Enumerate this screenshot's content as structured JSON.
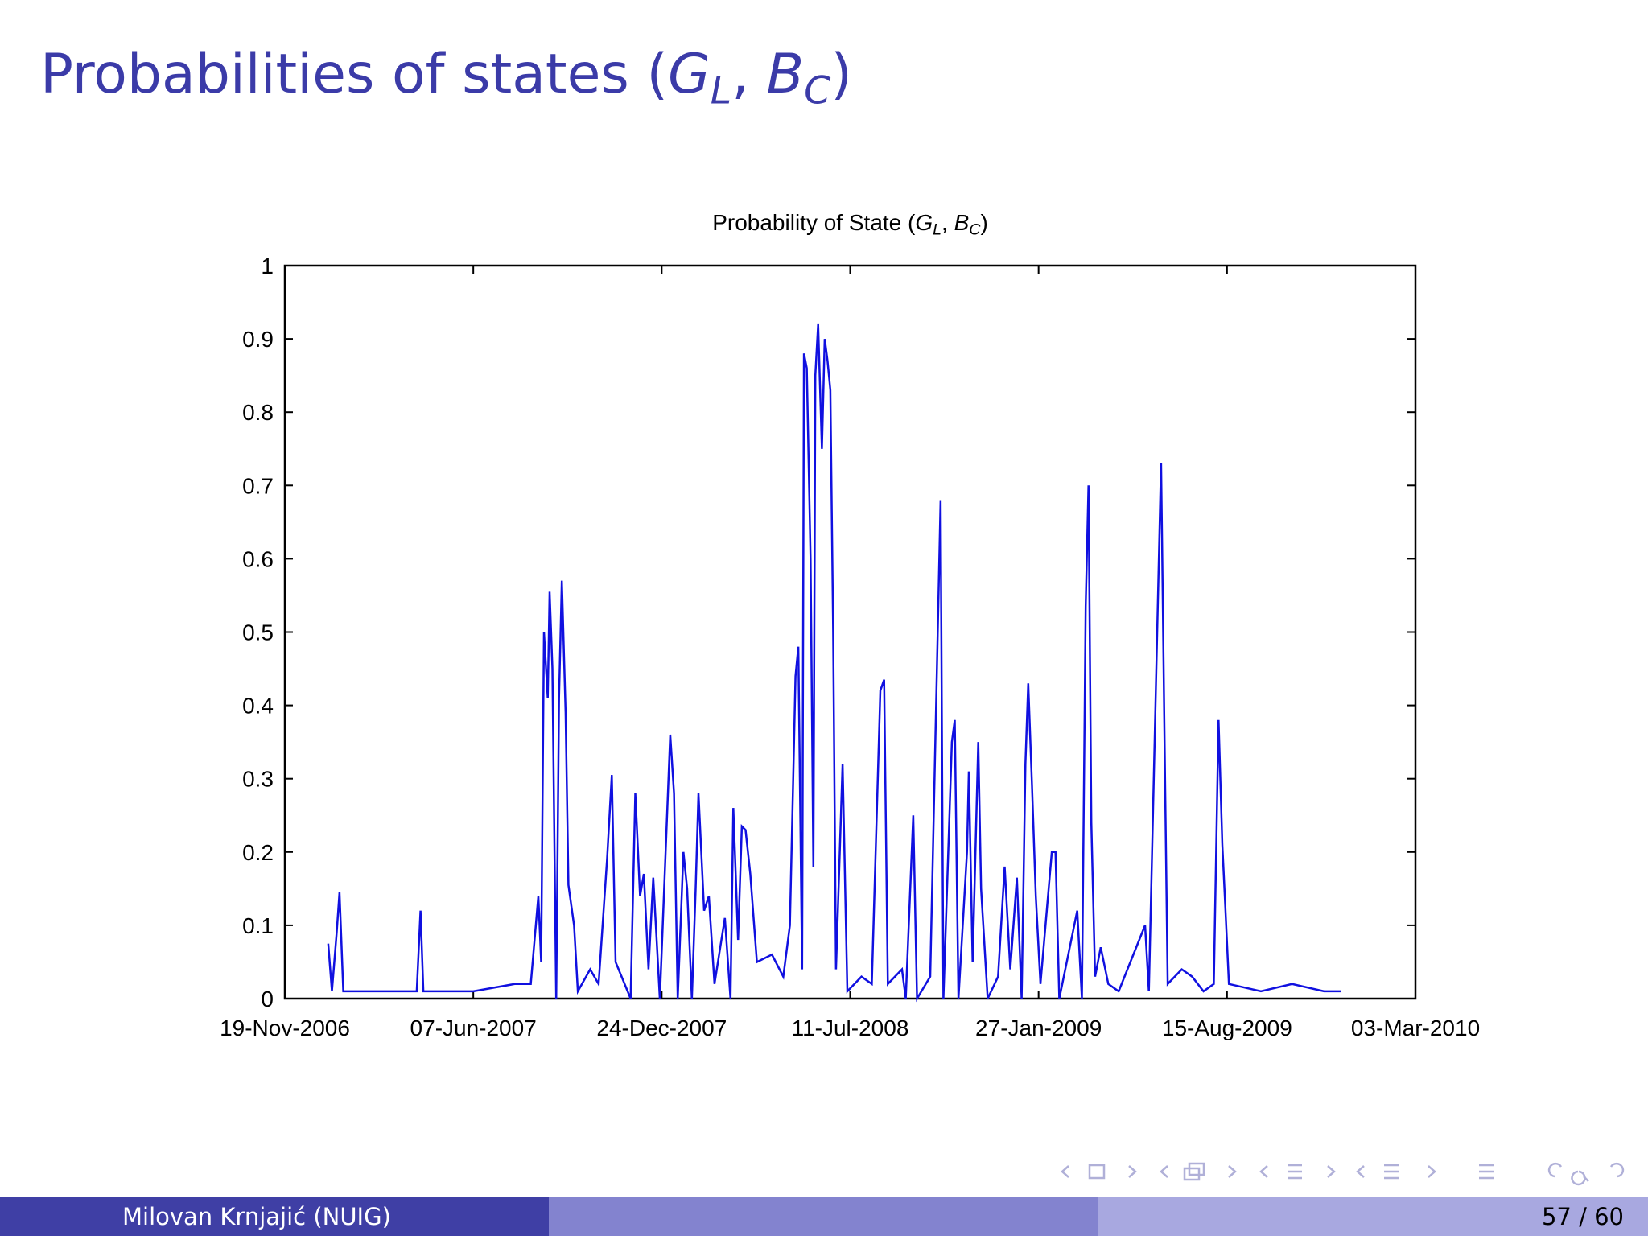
{
  "slide": {
    "title_parts": [
      "Probabilities of states (",
      "G",
      "L",
      ", ",
      "B",
      "C",
      ")"
    ],
    "author": "Milovan Krnjajić  (NUIG)",
    "page": "57 / 60"
  },
  "chart_data": {
    "type": "line",
    "title_parts": [
      "Probability of State (",
      "G",
      "L",
      ", ",
      "B",
      "C",
      ")"
    ],
    "color": "#1010e0",
    "xlim": [
      "2006-11-19",
      "2010-03-03"
    ],
    "xticks": [
      {
        "value": "2006-11-19",
        "label": "19-Nov-2006"
      },
      {
        "value": "2007-06-07",
        "label": "07-Jun-2007"
      },
      {
        "value": "2007-12-24",
        "label": "24-Dec-2007"
      },
      {
        "value": "2008-07-11",
        "label": "11-Jul-2008"
      },
      {
        "value": "2009-01-27",
        "label": "27-Jan-2009"
      },
      {
        "value": "2009-08-15",
        "label": "15-Aug-2009"
      },
      {
        "value": "2010-03-03",
        "label": "03-Mar-2010"
      }
    ],
    "ylim": [
      0,
      1
    ],
    "yticks": [
      0,
      0.1,
      0.2,
      0.3,
      0.4,
      0.5,
      0.6,
      0.7,
      0.8,
      0.9,
      1
    ],
    "x": [
      "2007-01-04",
      "2007-01-08",
      "2007-01-13",
      "2007-01-16",
      "2007-01-20",
      "2007-02-26",
      "2007-04-08",
      "2007-04-12",
      "2007-04-15",
      "2007-06-07",
      "2007-07-21",
      "2007-08-07",
      "2007-08-15",
      "2007-08-18",
      "2007-08-21",
      "2007-08-25",
      "2007-08-27",
      "2007-08-30",
      "2007-09-03",
      "2007-09-06",
      "2007-09-09",
      "2007-09-13",
      "2007-09-16",
      "2007-09-22",
      "2007-09-26",
      "2007-10-09",
      "2007-10-18",
      "2007-10-27",
      "2007-11-01",
      "2007-11-05",
      "2007-11-21",
      "2007-11-26",
      "2007-12-01",
      "2007-12-05",
      "2007-12-10",
      "2007-12-15",
      "2007-12-22",
      "2008-01-02",
      "2008-01-06",
      "2008-01-10",
      "2008-01-16",
      "2008-01-20",
      "2008-01-25",
      "2008-01-29",
      "2008-02-01",
      "2008-02-07",
      "2008-02-12",
      "2008-02-18",
      "2008-02-29",
      "2008-03-06",
      "2008-03-09",
      "2008-03-14",
      "2008-03-18",
      "2008-03-22",
      "2008-03-27",
      "2008-04-03",
      "2008-04-19",
      "2008-05-01",
      "2008-05-08",
      "2008-05-14",
      "2008-05-17",
      "2008-05-21",
      "2008-05-23",
      "2008-05-26",
      "2008-05-30",
      "2008-06-02",
      "2008-06-04",
      "2008-06-07",
      "2008-06-11",
      "2008-06-14",
      "2008-06-17",
      "2008-06-20",
      "2008-06-23",
      "2008-06-26",
      "2008-07-03",
      "2008-07-08",
      "2008-07-23",
      "2008-08-03",
      "2008-08-12",
      "2008-08-16",
      "2008-08-20",
      "2008-09-04",
      "2008-09-08",
      "2008-09-16",
      "2008-09-20",
      "2008-10-04",
      "2008-10-15",
      "2008-10-18",
      "2008-10-27",
      "2008-10-30",
      "2008-11-03",
      "2008-11-12",
      "2008-11-14",
      "2008-11-18",
      "2008-11-24",
      "2008-11-27",
      "2008-12-04",
      "2008-12-15",
      "2008-12-22",
      "2008-12-28",
      "2009-01-04",
      "2009-01-09",
      "2009-01-13",
      "2009-01-16",
      "2009-01-20",
      "2009-01-24",
      "2009-01-29",
      "2009-02-10",
      "2009-02-14",
      "2009-02-18",
      "2009-03-09",
      "2009-03-14",
      "2009-03-18",
      "2009-03-21",
      "2009-03-24",
      "2009-03-28",
      "2009-04-03",
      "2009-04-11",
      "2009-04-22",
      "2009-05-20",
      "2009-05-24",
      "2009-06-06",
      "2009-06-09",
      "2009-06-13",
      "2009-06-28",
      "2009-07-09",
      "2009-07-21",
      "2009-08-01",
      "2009-08-04",
      "2009-08-06",
      "2009-08-10",
      "2009-08-13",
      "2009-08-17",
      "2009-09-20",
      "2009-10-23",
      "2009-11-26",
      "2009-12-14"
    ],
    "values": [
      0.075,
      0.01,
      0.09,
      0.145,
      0.01,
      0.01,
      0.01,
      0.12,
      0.01,
      0.01,
      0.02,
      0.02,
      0.14,
      0.05,
      0.5,
      0.41,
      0.555,
      0.45,
      0.0,
      0.41,
      0.57,
      0.39,
      0.155,
      0.1,
      0.01,
      0.04,
      0.02,
      0.19,
      0.305,
      0.05,
      0.0,
      0.28,
      0.14,
      0.17,
      0.04,
      0.165,
      0.0,
      0.36,
      0.28,
      0.0,
      0.2,
      0.15,
      0.0,
      0.15,
      0.28,
      0.12,
      0.14,
      0.02,
      0.11,
      0.0,
      0.26,
      0.08,
      0.235,
      0.23,
      0.17,
      0.05,
      0.06,
      0.03,
      0.1,
      0.44,
      0.48,
      0.04,
      0.88,
      0.86,
      0.6,
      0.18,
      0.85,
      0.92,
      0.75,
      0.9,
      0.87,
      0.83,
      0.5,
      0.04,
      0.32,
      0.01,
      0.03,
      0.02,
      0.42,
      0.435,
      0.02,
      0.04,
      0.0,
      0.25,
      0.0,
      0.03,
      0.68,
      0.0,
      0.35,
      0.38,
      0.0,
      0.2,
      0.31,
      0.05,
      0.35,
      0.15,
      0.0,
      0.03,
      0.18,
      0.04,
      0.165,
      0.0,
      0.32,
      0.43,
      0.29,
      0.14,
      0.02,
      0.2,
      0.2,
      0.0,
      0.12,
      0.0,
      0.535,
      0.7,
      0.24,
      0.03,
      0.07,
      0.02,
      0.01,
      0.1,
      0.01,
      0.73,
      0.42,
      0.02,
      0.04,
      0.03,
      0.01,
      0.02,
      0.24,
      0.38,
      0.21,
      0.13,
      0.02,
      0.01,
      0.02,
      0.01,
      0.01
    ]
  }
}
